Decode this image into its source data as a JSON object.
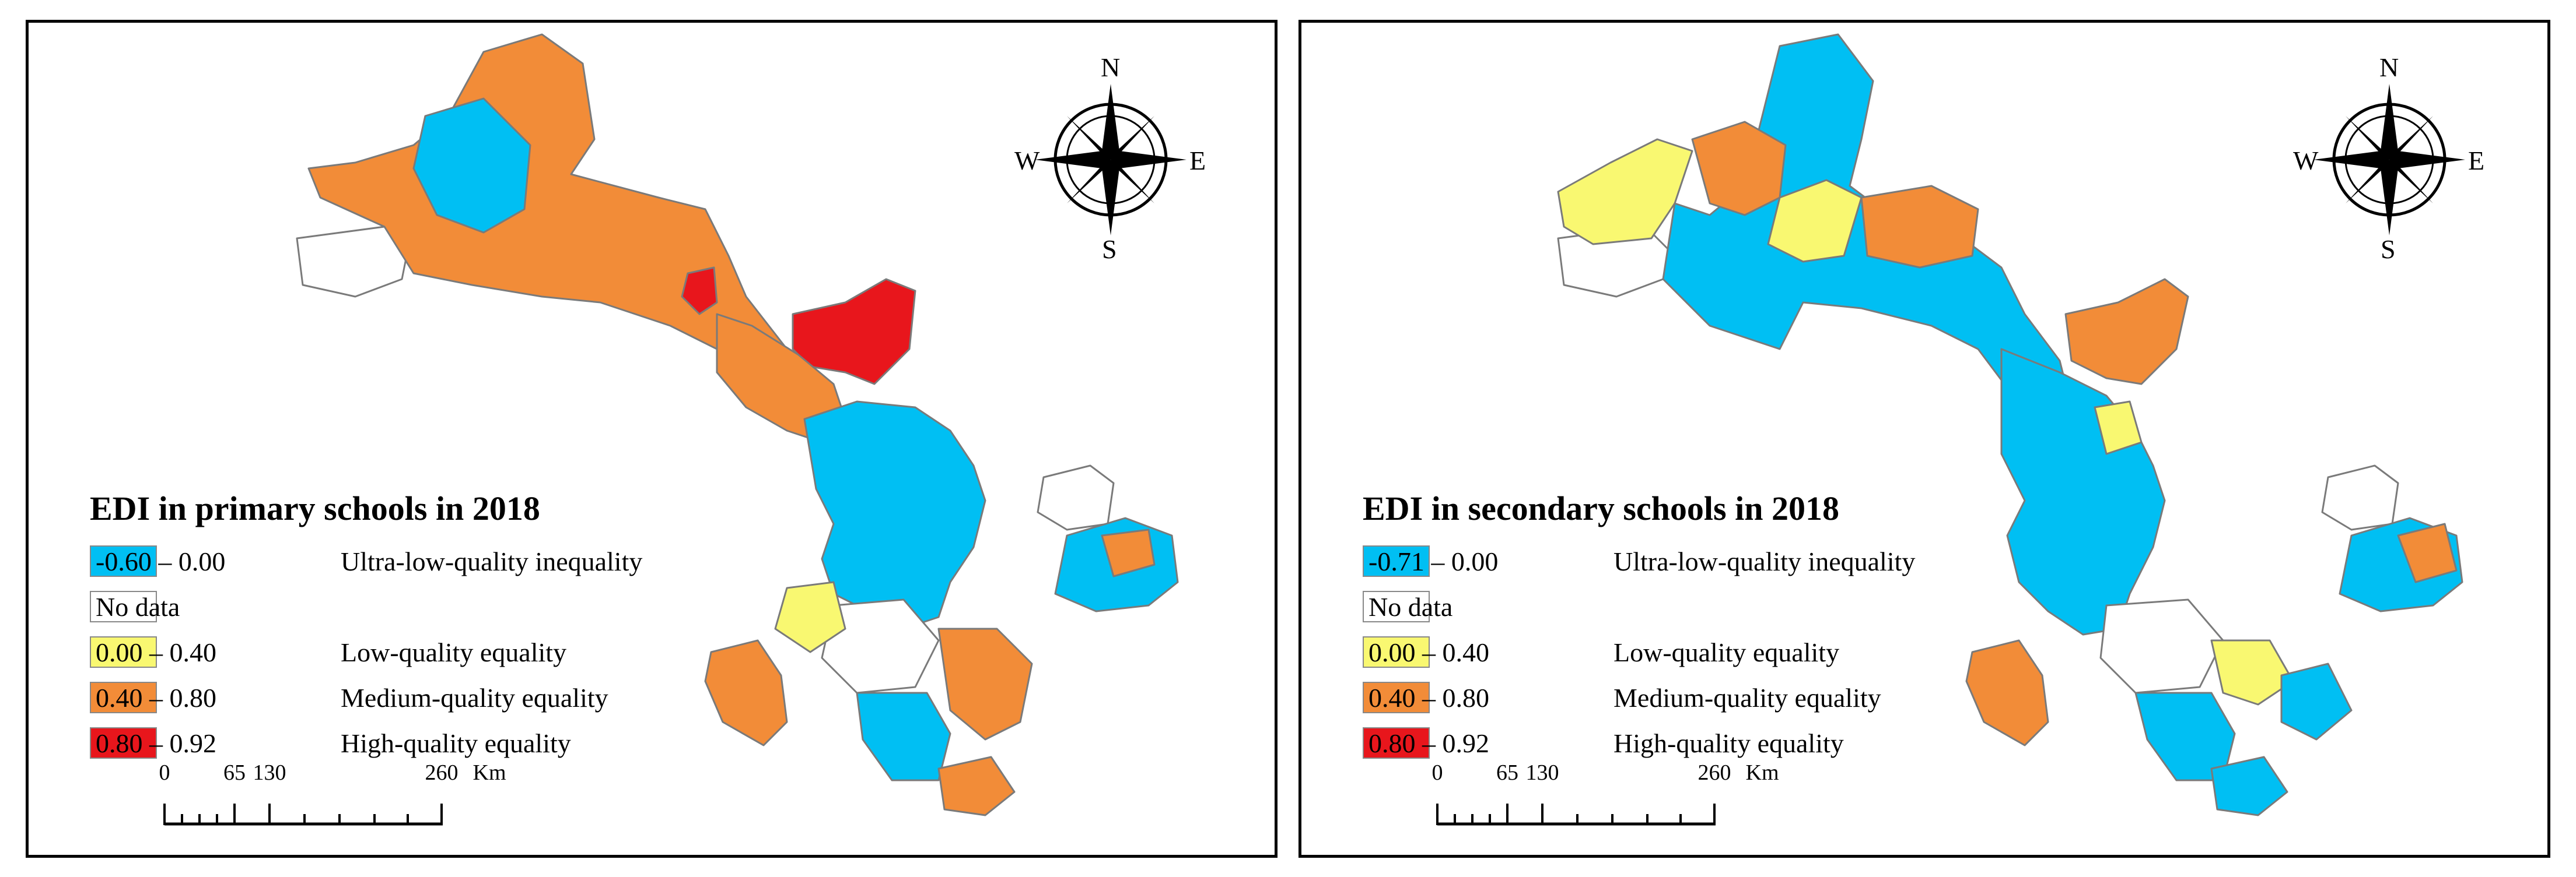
{
  "maps": [
    {
      "legend_title": "EDI in primary schools in 2018",
      "classes": [
        {
          "range": "-0.60 – 0.00",
          "label": "Ultra-low-quality inequality",
          "color": "#00BFF3"
        },
        {
          "range": "",
          "label": "No data",
          "color": "#FFFFFF"
        },
        {
          "range": "0.00 – 0.40",
          "label": "Low-quality equality",
          "color": "#F9F871"
        },
        {
          "range": "0.40 – 0.80",
          "label": "Medium-quality equality",
          "color": "#F28C38"
        },
        {
          "range": "0.80 – 0.92",
          "label": "High-quality equality",
          "color": "#E8161C"
        }
      ],
      "scale": {
        "ticks": [
          "0",
          "65",
          "130",
          "260"
        ],
        "unit": "Km"
      },
      "compass": {
        "n": "N",
        "s": "S",
        "e": "E",
        "w": "W"
      }
    },
    {
      "legend_title": "EDI in secondary schools in 2018",
      "classes": [
        {
          "range": "-0.71 – 0.00",
          "label": "Ultra-low-quality inequality",
          "color": "#00BFF3"
        },
        {
          "range": "",
          "label": "No data",
          "color": "#FFFFFF"
        },
        {
          "range": "0.00 – 0.40",
          "label": "Low-quality equality",
          "color": "#F9F871"
        },
        {
          "range": "0.40 – 0.80",
          "label": "Medium-quality equality",
          "color": "#F28C38"
        },
        {
          "range": "0.80 – 0.92",
          "label": "High-quality equality",
          "color": "#E8161C"
        }
      ],
      "scale": {
        "ticks": [
          "0",
          "65",
          "130",
          "260"
        ],
        "unit": "Km"
      },
      "compass": {
        "n": "N",
        "s": "S",
        "e": "E",
        "w": "W"
      }
    }
  ]
}
